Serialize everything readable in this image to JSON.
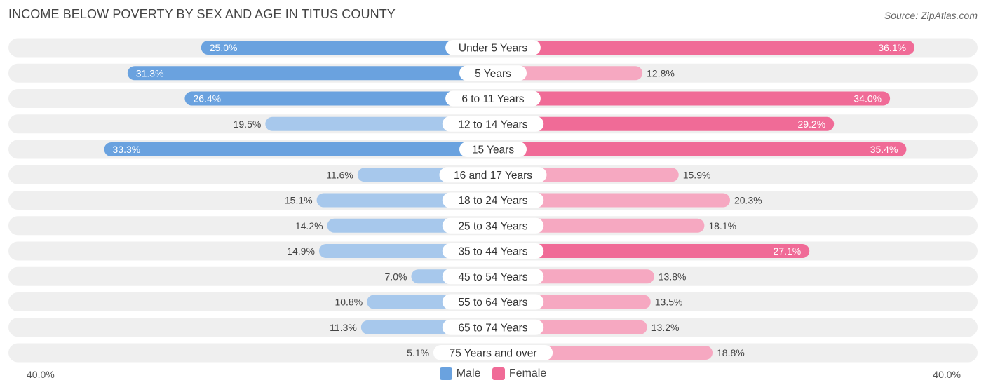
{
  "header": {
    "title": "INCOME BELOW POVERTY BY SEX AND AGE IN TITUS COUNTY",
    "source": "Source: ZipAtlas.com"
  },
  "axis": {
    "left_label": "40.0%",
    "right_label": "40.0%"
  },
  "legend": {
    "male_label": "Male",
    "female_label": "Female"
  },
  "colors": {
    "male_strong": "#6aa2df",
    "male_light": "#a7c8ec",
    "female_strong": "#f06b97",
    "female_light": "#f6a8c1",
    "row_bg": "#efefef"
  },
  "chart_data": {
    "type": "bar",
    "orientation": "horizontal-diverging",
    "title": "INCOME BELOW POVERTY BY SEX AND AGE IN TITUS COUNTY",
    "xlim": [
      -40,
      40
    ],
    "categories": [
      "Under 5 Years",
      "5 Years",
      "6 to 11 Years",
      "12 to 14 Years",
      "15 Years",
      "16 and 17 Years",
      "18 to 24 Years",
      "25 to 34 Years",
      "35 to 44 Years",
      "45 to 54 Years",
      "55 to 64 Years",
      "65 to 74 Years",
      "75 Years and over"
    ],
    "series": [
      {
        "name": "Male",
        "values": [
          25.0,
          31.3,
          26.4,
          19.5,
          33.3,
          11.6,
          15.1,
          14.2,
          14.9,
          7.0,
          10.8,
          11.3,
          5.1
        ],
        "labels": [
          "25.0%",
          "31.3%",
          "26.4%",
          "19.5%",
          "33.3%",
          "11.6%",
          "15.1%",
          "14.2%",
          "14.9%",
          "7.0%",
          "10.8%",
          "11.3%",
          "5.1%"
        ]
      },
      {
        "name": "Female",
        "values": [
          36.1,
          12.8,
          34.0,
          29.2,
          35.4,
          15.9,
          20.3,
          18.1,
          27.1,
          13.8,
          13.5,
          13.2,
          18.8
        ],
        "labels": [
          "36.1%",
          "12.8%",
          "34.0%",
          "29.2%",
          "35.4%",
          "15.9%",
          "20.3%",
          "18.1%",
          "27.1%",
          "13.8%",
          "13.5%",
          "13.2%",
          "18.8%"
        ]
      }
    ],
    "legend_position": "bottom-center"
  }
}
